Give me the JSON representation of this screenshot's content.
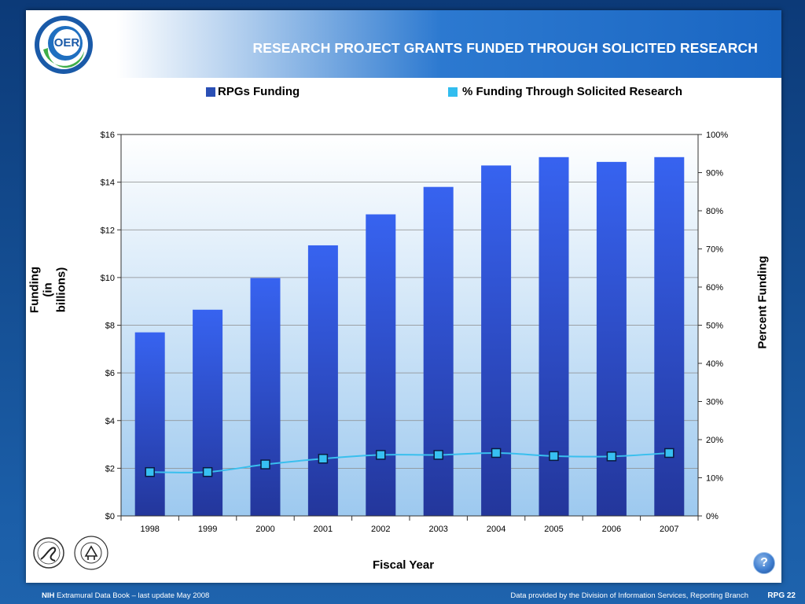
{
  "slide": {
    "title": "RESEARCH PROJECT GRANTS FUNDED THROUGH SOLICITED RESEARCH",
    "logo_text": "OER"
  },
  "footer": {
    "org": "NIH",
    "left_text": " Extramural Data Book – last update May 2008",
    "right_text": "Data provided by the Division of Information Services, Reporting Branch",
    "page": "RPG 22"
  },
  "help_button": {
    "label": "?"
  },
  "colors": {
    "bar_top": "#3763f0",
    "bar_bottom": "#23369b",
    "line": "#39bfee",
    "marker": "#37c0f2",
    "legend_bar": "#2a4fb5",
    "legend_line": "#32bdef",
    "plot_bg_top": "#ffffff",
    "plot_bg_bottom": "#9dc9ef"
  },
  "chart_data": {
    "type": "bar",
    "title": "RESEARCH PROJECT GRANTS FUNDED THROUGH SOLICITED RESEARCH",
    "xlabel": "Fiscal Year",
    "ylabel": "Funding\n(in billions)",
    "ylabel_line1": "Funding",
    "ylabel_line2": "(in billions)",
    "y2label": "Percent Funding",
    "categories": [
      "1998",
      "1999",
      "2000",
      "2001",
      "2002",
      "2003",
      "2004",
      "2005",
      "2006",
      "2007"
    ],
    "series": [
      {
        "name": "RPGs Funding",
        "type": "bar",
        "axis": "left",
        "values": [
          7.7,
          8.65,
          9.98,
          11.35,
          12.65,
          13.8,
          14.7,
          15.05,
          14.85,
          15.05
        ]
      },
      {
        "name": "% Funding Through Solicited Research",
        "type": "line",
        "axis": "right",
        "values": [
          11.5,
          11.5,
          13.5,
          15.0,
          16.0,
          16.0,
          16.5,
          15.7,
          15.6,
          16.5
        ]
      }
    ],
    "ylim": [
      0,
      16
    ],
    "y2lim": [
      0,
      100
    ],
    "yticks": [
      "$0",
      "$2",
      "$4",
      "$6",
      "$8",
      "$10",
      "$12",
      "$14",
      "$16"
    ],
    "y2ticks": [
      "0%",
      "10%",
      "20%",
      "30%",
      "40%",
      "50%",
      "60%",
      "70%",
      "80%",
      "90%",
      "100%"
    ],
    "grid": true,
    "legend": "top"
  }
}
